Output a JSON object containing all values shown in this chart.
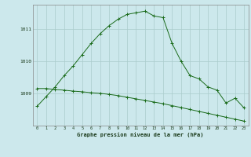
{
  "hours": [
    0,
    1,
    2,
    3,
    4,
    5,
    6,
    7,
    8,
    9,
    10,
    11,
    12,
    13,
    14,
    15,
    16,
    17,
    18,
    19,
    20,
    21,
    22,
    23
  ],
  "pressure_line1": [
    1008.6,
    1008.9,
    1009.2,
    1009.55,
    1009.85,
    1010.2,
    1010.55,
    1010.85,
    1011.1,
    1011.3,
    1011.45,
    1011.5,
    1011.55,
    1011.4,
    1011.35,
    1010.55,
    1010.0,
    1009.55,
    1009.45,
    1009.2,
    1009.1,
    1008.7,
    1008.85,
    1008.55
  ],
  "trend_line": [
    1009.15,
    1009.15,
    1009.12,
    1009.1,
    1009.07,
    1009.05,
    1009.02,
    1009.0,
    1008.97,
    1008.93,
    1008.88,
    1008.83,
    1008.78,
    1008.73,
    1008.68,
    1008.62,
    1008.56,
    1008.5,
    1008.44,
    1008.38,
    1008.32,
    1008.26,
    1008.2,
    1008.14
  ],
  "line_color": "#1a6b1a",
  "bg_color": "#cce8ec",
  "grid_color": "#aacccc",
  "ylabel_ticks": [
    1009,
    1010,
    1011
  ],
  "xlabel": "Graphe pression niveau de la mer (hPa)",
  "ylim": [
    1008.0,
    1011.75
  ],
  "xlim": [
    -0.5,
    23.5
  ]
}
